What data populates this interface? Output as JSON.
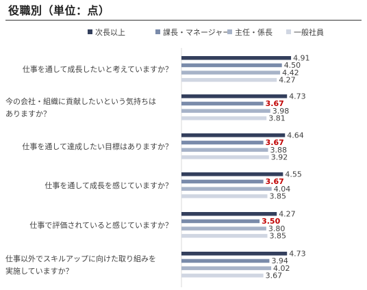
{
  "title": "役職別（単位：点）",
  "chart_data": {
    "type": "bar",
    "orientation": "horizontal",
    "title": "役職別（単位：点）",
    "legend_position": "top-right",
    "series": [
      {
        "name": "次長以上",
        "color": "#333f5c",
        "values": [
          4.91,
          4.73,
          4.64,
          4.55,
          4.27,
          4.73
        ]
      },
      {
        "name": "課長・マネージャー",
        "color": "#7a8baa",
        "values": [
          4.5,
          3.67,
          3.67,
          3.67,
          3.5,
          3.94
        ]
      },
      {
        "name": "主任・係長",
        "color": "#a7b3c8",
        "values": [
          4.42,
          3.98,
          3.88,
          4.04,
          3.8,
          4.02
        ]
      },
      {
        "name": "一般社員",
        "color": "#d0d6e2",
        "values": [
          4.27,
          3.81,
          3.92,
          3.85,
          3.85,
          3.67
        ]
      }
    ],
    "categories": [
      [
        "仕事を通して成長したいと考えていますか？"
      ],
      [
        "今の会社・組織に貢献したいという気持ちは",
        "ありますか？"
      ],
      [
        "仕事を通して達成したい目標はありますか？"
      ],
      [
        "仕事を通して成長を感じていますか？"
      ],
      [
        "仕事で評価されていると感じていますか？"
      ],
      [
        "仕事以外でスキルアップに向けた取り組みを",
        "実施していますか？"
      ]
    ],
    "value_labels": [
      [
        "4.91",
        "4.50",
        "4.42",
        "4.27"
      ],
      [
        "4.73",
        "3.67",
        "3.98",
        "3.81"
      ],
      [
        "4.64",
        "3.67",
        "3.88",
        "3.92"
      ],
      [
        "4.55",
        "3.67",
        "4.04",
        "3.85"
      ],
      [
        "4.27",
        "3.50",
        "3.80",
        "3.85"
      ],
      [
        "4.73",
        "3.94",
        "4.02",
        "3.67"
      ]
    ],
    "highlight_color": "#c00000",
    "highlighted_labels": [
      [
        1,
        1
      ],
      [
        2,
        1
      ],
      [
        3,
        1
      ],
      [
        4,
        1
      ]
    ],
    "xlim": [
      0,
      5
    ],
    "grid": false
  }
}
